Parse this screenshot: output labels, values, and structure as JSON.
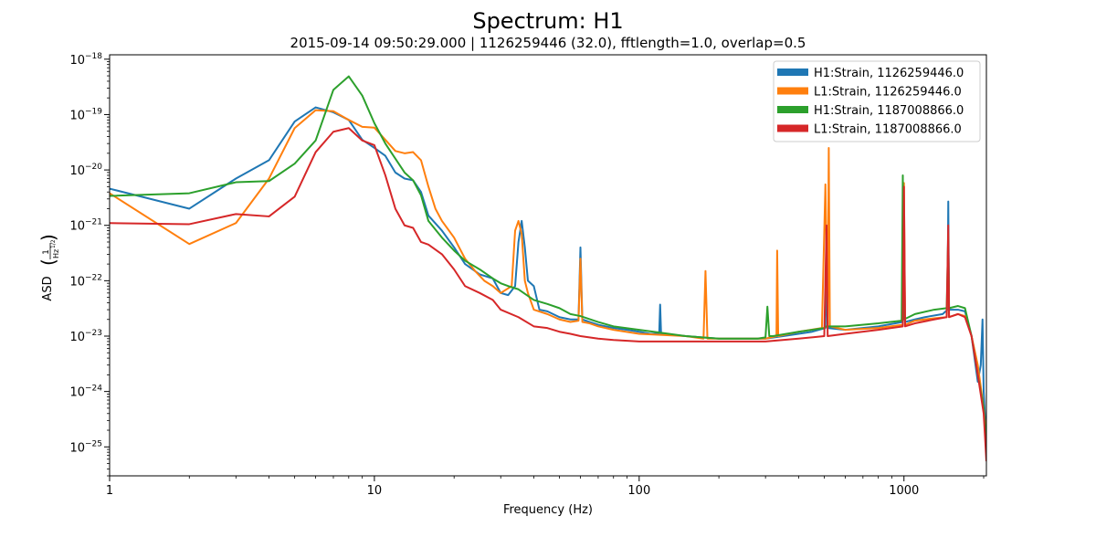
{
  "chart_data": {
    "type": "line",
    "title": "Spectrum: H1",
    "subtitle": "2015-09-14 09:50:29.000 | 1126259446 (32.0), fftlength=1.0, overlap=0.5",
    "xlabel": "Frequency (Hz)",
    "ylabel_prefix": "ASD",
    "ylabel_unit_num": "1",
    "ylabel_unit_den": "Hz",
    "ylabel_unit_exp": "1/2",
    "xscale": "log",
    "yscale": "log",
    "xlim": [
      1,
      2048
    ],
    "ylim": [
      3e-26,
      1.2e-18
    ],
    "x_ticks": [
      {
        "value": 1,
        "label": "1"
      },
      {
        "value": 10,
        "label": "10"
      },
      {
        "value": 100,
        "label": "100"
      },
      {
        "value": 1000,
        "label": "1000"
      }
    ],
    "y_ticks": [
      {
        "value": 1e-25,
        "mant": "10",
        "exp": "−25"
      },
      {
        "value": 1e-24,
        "mant": "10",
        "exp": "−24"
      },
      {
        "value": 1e-23,
        "mant": "10",
        "exp": "−23"
      },
      {
        "value": 1e-22,
        "mant": "10",
        "exp": "−22"
      },
      {
        "value": 1e-21,
        "mant": "10",
        "exp": "−21"
      },
      {
        "value": 1e-20,
        "mant": "10",
        "exp": "−20"
      },
      {
        "value": 1e-19,
        "mant": "10",
        "exp": "−19"
      },
      {
        "value": 1e-18,
        "mant": "10",
        "exp": "−18"
      }
    ],
    "legend_position": "top-right",
    "series": [
      {
        "name": "H1:Strain, 1126259446.0",
        "color": "#1f77b4",
        "points": [
          [
            1,
            4.6e-21
          ],
          [
            2,
            2e-21
          ],
          [
            3,
            7e-21
          ],
          [
            4,
            1.5e-20
          ],
          [
            5,
            7.5e-20
          ],
          [
            6,
            1.35e-19
          ],
          [
            7,
            1.1e-19
          ],
          [
            8,
            8e-20
          ],
          [
            9,
            3.5e-20
          ],
          [
            10,
            2.5e-20
          ],
          [
            11,
            1.8e-20
          ],
          [
            12,
            9e-21
          ],
          [
            13,
            7e-21
          ],
          [
            14,
            6.5e-21
          ],
          [
            15,
            4e-21
          ],
          [
            16,
            1.5e-21
          ],
          [
            18,
            8e-22
          ],
          [
            20,
            4e-22
          ],
          [
            22,
            2e-22
          ],
          [
            25,
            1.3e-22
          ],
          [
            28,
            1.1e-22
          ],
          [
            30,
            6e-23
          ],
          [
            32,
            5.5e-23
          ],
          [
            34,
            8e-23
          ],
          [
            35,
            5e-22
          ],
          [
            36,
            1.2e-21
          ],
          [
            37,
            4e-22
          ],
          [
            38,
            1e-22
          ],
          [
            40,
            8e-23
          ],
          [
            42,
            3e-23
          ],
          [
            45,
            2.8e-23
          ],
          [
            50,
            2.2e-23
          ],
          [
            55,
            2e-23
          ],
          [
            59,
            2e-23
          ],
          [
            60,
            4e-22
          ],
          [
            61,
            2e-23
          ],
          [
            65,
            1.8e-23
          ],
          [
            70,
            1.6e-23
          ],
          [
            80,
            1.4e-23
          ],
          [
            90,
            1.3e-23
          ],
          [
            100,
            1.2e-23
          ],
          [
            110,
            1.1e-23
          ],
          [
            119,
            1.1e-23
          ],
          [
            120,
            3.7e-23
          ],
          [
            121,
            1.1e-23
          ],
          [
            150,
            1e-23
          ],
          [
            200,
            9e-24
          ],
          [
            300,
            9e-24
          ],
          [
            350,
            1e-23
          ],
          [
            450,
            1.2e-23
          ],
          [
            505,
            1.4e-23
          ],
          [
            510,
            2.5e-22
          ],
          [
            515,
            1.4e-23
          ],
          [
            600,
            1.3e-23
          ],
          [
            800,
            1.5e-23
          ],
          [
            990,
            1.8e-23
          ],
          [
            1000,
            5e-22
          ],
          [
            1010,
            1.8e-23
          ],
          [
            1100,
            2e-23
          ],
          [
            1200,
            2.2e-23
          ],
          [
            1400,
            2.5e-23
          ],
          [
            1460,
            3e-23
          ],
          [
            1470,
            2.7e-21
          ],
          [
            1480,
            3e-23
          ],
          [
            1600,
            3e-23
          ],
          [
            1700,
            2.8e-23
          ],
          [
            1800,
            1e-23
          ],
          [
            1900,
            1.5e-24
          ],
          [
            1950,
            3e-24
          ],
          [
            1980,
            2e-23
          ],
          [
            2000,
            1e-24
          ],
          [
            2048,
            1.2e-25
          ]
        ]
      },
      {
        "name": "L1:Strain, 1126259446.0",
        "color": "#ff7f0e",
        "points": [
          [
            1,
            3.8e-21
          ],
          [
            2,
            4.6e-22
          ],
          [
            3,
            1.1e-21
          ],
          [
            4,
            7e-21
          ],
          [
            5,
            5.7e-20
          ],
          [
            6,
            1.2e-19
          ],
          [
            7,
            1.15e-19
          ],
          [
            8,
            8e-20
          ],
          [
            9,
            6e-20
          ],
          [
            10,
            5.8e-20
          ],
          [
            11,
            3.5e-20
          ],
          [
            12,
            2.2e-20
          ],
          [
            13,
            2e-20
          ],
          [
            14,
            2.1e-20
          ],
          [
            15,
            1.5e-20
          ],
          [
            16,
            5e-21
          ],
          [
            17,
            2e-21
          ],
          [
            18,
            1.2e-21
          ],
          [
            20,
            6e-22
          ],
          [
            22,
            2.5e-22
          ],
          [
            24,
            1.5e-22
          ],
          [
            26,
            1e-22
          ],
          [
            28,
            8e-23
          ],
          [
            30,
            6e-23
          ],
          [
            33,
            8e-23
          ],
          [
            34,
            8e-22
          ],
          [
            35,
            1.2e-21
          ],
          [
            36,
            7e-22
          ],
          [
            37,
            1e-22
          ],
          [
            38,
            6e-23
          ],
          [
            40,
            3e-23
          ],
          [
            45,
            2.5e-23
          ],
          [
            50,
            2e-23
          ],
          [
            55,
            1.8e-23
          ],
          [
            59,
            1.9e-23
          ],
          [
            60,
            2.5e-22
          ],
          [
            61,
            1.8e-23
          ],
          [
            65,
            1.7e-23
          ],
          [
            70,
            1.5e-23
          ],
          [
            80,
            1.3e-23
          ],
          [
            100,
            1.1e-23
          ],
          [
            150,
            1e-23
          ],
          [
            175,
            9e-24
          ],
          [
            178,
            1.5e-22
          ],
          [
            181,
            9e-24
          ],
          [
            250,
            9e-24
          ],
          [
            300,
            9e-24
          ],
          [
            330,
            1e-23
          ],
          [
            332,
            3.5e-22
          ],
          [
            335,
            1e-23
          ],
          [
            400,
            1.2e-23
          ],
          [
            490,
            1.4e-23
          ],
          [
            505,
            5.5e-21
          ],
          [
            515,
            1.5e-23
          ],
          [
            520,
            2.5e-20
          ],
          [
            525,
            1.5e-23
          ],
          [
            600,
            1.3e-23
          ],
          [
            800,
            1.4e-23
          ],
          [
            990,
            1.6e-23
          ],
          [
            1000,
            5.8e-21
          ],
          [
            1010,
            1.6e-23
          ],
          [
            1100,
            1.9e-23
          ],
          [
            1300,
            2.1e-23
          ],
          [
            1450,
            2.2e-23
          ],
          [
            1470,
            3e-22
          ],
          [
            1480,
            2.2e-23
          ],
          [
            1600,
            2.5e-23
          ],
          [
            1700,
            2.3e-23
          ],
          [
            1800,
            1e-23
          ],
          [
            1900,
            3e-24
          ],
          [
            2000,
            5e-25
          ],
          [
            2048,
            1.5e-25
          ]
        ]
      },
      {
        "name": "H1:Strain, 1187008866.0",
        "color": "#2ca02c",
        "points": [
          [
            1,
            3.4e-21
          ],
          [
            2,
            3.8e-21
          ],
          [
            3,
            6e-21
          ],
          [
            4,
            6.3e-21
          ],
          [
            5,
            1.3e-20
          ],
          [
            6,
            3.4e-20
          ],
          [
            7,
            2.8e-19
          ],
          [
            8,
            4.9e-19
          ],
          [
            9,
            2.2e-19
          ],
          [
            10,
            7e-20
          ],
          [
            11,
            3e-20
          ],
          [
            12,
            1.6e-20
          ],
          [
            13,
            9e-21
          ],
          [
            14,
            6.5e-21
          ],
          [
            15,
            3.5e-21
          ],
          [
            16,
            1.2e-21
          ],
          [
            18,
            6e-22
          ],
          [
            20,
            3.5e-22
          ],
          [
            22,
            2.3e-22
          ],
          [
            25,
            1.6e-22
          ],
          [
            28,
            1.1e-22
          ],
          [
            30,
            9e-23
          ],
          [
            32,
            8e-23
          ],
          [
            35,
            7e-23
          ],
          [
            40,
            4.5e-23
          ],
          [
            45,
            3.8e-23
          ],
          [
            50,
            3.2e-23
          ],
          [
            55,
            2.5e-23
          ],
          [
            60,
            2.3e-23
          ],
          [
            70,
            1.8e-23
          ],
          [
            80,
            1.5e-23
          ],
          [
            100,
            1.3e-23
          ],
          [
            150,
            1e-23
          ],
          [
            200,
            9e-24
          ],
          [
            280,
            9e-24
          ],
          [
            300,
            9.5e-24
          ],
          [
            305,
            3.4e-23
          ],
          [
            310,
            1e-23
          ],
          [
            320,
            1e-23
          ],
          [
            400,
            1.2e-23
          ],
          [
            500,
            1.4e-23
          ],
          [
            510,
            1.5e-23
          ],
          [
            600,
            1.5e-23
          ],
          [
            800,
            1.7e-23
          ],
          [
            980,
            1.9e-23
          ],
          [
            990,
            8e-21
          ],
          [
            1000,
            2e-23
          ],
          [
            1100,
            2.5e-23
          ],
          [
            1300,
            3e-23
          ],
          [
            1450,
            3.2e-23
          ],
          [
            1470,
            7e-22
          ],
          [
            1480,
            3.2e-23
          ],
          [
            1600,
            3.5e-23
          ],
          [
            1700,
            3.2e-23
          ],
          [
            1800,
            1e-23
          ],
          [
            1900,
            2e-24
          ],
          [
            2000,
            5e-25
          ],
          [
            2048,
            1.2e-25
          ]
        ]
      },
      {
        "name": "L1:Strain, 1187008866.0",
        "color": "#d62728",
        "points": [
          [
            1,
            1.1e-21
          ],
          [
            2,
            1.05e-21
          ],
          [
            3,
            1.6e-21
          ],
          [
            4,
            1.45e-21
          ],
          [
            5,
            3.3e-21
          ],
          [
            6,
            2.1e-20
          ],
          [
            7,
            4.9e-20
          ],
          [
            8,
            5.7e-20
          ],
          [
            9,
            3.4e-20
          ],
          [
            10,
            2.8e-20
          ],
          [
            11,
            8e-21
          ],
          [
            12,
            2e-21
          ],
          [
            13,
            1e-21
          ],
          [
            14,
            9e-22
          ],
          [
            15,
            5e-22
          ],
          [
            16,
            4.5e-22
          ],
          [
            18,
            3e-22
          ],
          [
            20,
            1.6e-22
          ],
          [
            22,
            8e-23
          ],
          [
            25,
            6e-23
          ],
          [
            28,
            4.5e-23
          ],
          [
            30,
            3e-23
          ],
          [
            35,
            2.2e-23
          ],
          [
            40,
            1.5e-23
          ],
          [
            45,
            1.4e-23
          ],
          [
            50,
            1.2e-23
          ],
          [
            55,
            1.1e-23
          ],
          [
            60,
            1e-23
          ],
          [
            70,
            9e-24
          ],
          [
            80,
            8.5e-24
          ],
          [
            100,
            8e-24
          ],
          [
            150,
            8e-24
          ],
          [
            200,
            8e-24
          ],
          [
            300,
            8e-24
          ],
          [
            400,
            9e-24
          ],
          [
            500,
            1e-23
          ],
          [
            510,
            1e-21
          ],
          [
            515,
            1e-23
          ],
          [
            600,
            1.1e-23
          ],
          [
            800,
            1.3e-23
          ],
          [
            990,
            1.5e-23
          ],
          [
            1000,
            5e-21
          ],
          [
            1010,
            1.5e-23
          ],
          [
            1100,
            1.7e-23
          ],
          [
            1300,
            2e-23
          ],
          [
            1450,
            2.2e-23
          ],
          [
            1470,
            1e-21
          ],
          [
            1480,
            2.2e-23
          ],
          [
            1600,
            2.5e-23
          ],
          [
            1700,
            2.2e-23
          ],
          [
            1800,
            1e-23
          ],
          [
            1900,
            2e-24
          ],
          [
            2000,
            4e-25
          ],
          [
            2048,
            5.5e-26
          ]
        ]
      }
    ]
  }
}
